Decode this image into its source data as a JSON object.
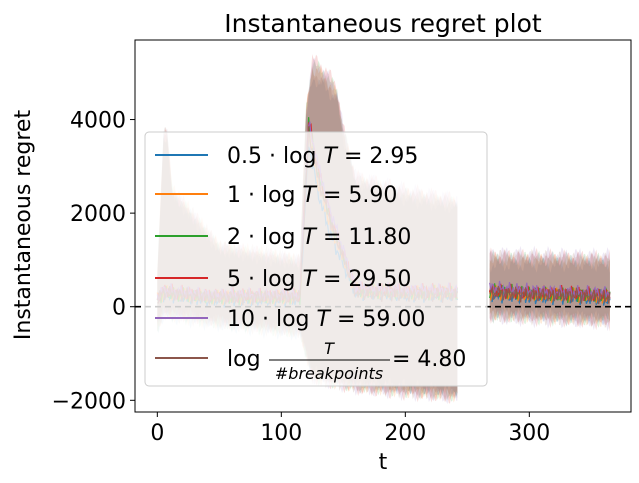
{
  "chart_data": {
    "type": "line",
    "title": "Instantaneous regret plot",
    "xlabel": "t",
    "ylabel": "Instantaneous regret",
    "xlim": [
      -18,
      382
    ],
    "ylim": [
      -2250,
      5700
    ],
    "xticks": [
      0,
      100,
      200,
      300
    ],
    "xtick_labels": [
      "0",
      "100",
      "200",
      "300"
    ],
    "yticks": [
      -2000,
      0,
      2000,
      4000
    ],
    "ytick_labels": [
      "−2000",
      "0",
      "2000",
      "4000"
    ],
    "grid": false,
    "legend_position": "center-left",
    "reference_line": {
      "y": 0,
      "style": "dashed",
      "color": "#000000"
    },
    "series": [
      {
        "name_parts": [
          "0.5 · log ",
          "T",
          " = 2.95"
        ],
        "color": "#1f77b4",
        "mean": [
          [
            0,
            150
          ],
          [
            5,
            250
          ],
          [
            40,
            150
          ],
          [
            80,
            150
          ],
          [
            115,
            150
          ],
          [
            122,
            3500
          ],
          [
            130,
            2400
          ],
          [
            140,
            1500
          ],
          [
            160,
            300
          ],
          [
            200,
            250
          ],
          [
            242,
            250
          ],
          [
            268,
            250
          ],
          [
            300,
            200
          ],
          [
            330,
            200
          ],
          [
            365,
            150
          ]
        ],
        "band": [
          [
            0,
            600
          ],
          [
            5,
            3600
          ],
          [
            8,
            3600
          ],
          [
            12,
            2400
          ],
          [
            50,
            1200
          ],
          [
            115,
            900
          ],
          [
            120,
            4000
          ],
          [
            125,
            4900
          ],
          [
            135,
            4700
          ],
          [
            145,
            4400
          ],
          [
            150,
            3600
          ],
          [
            160,
            2600
          ],
          [
            200,
            2300
          ],
          [
            242,
            2100
          ],
          [
            268,
            900
          ],
          [
            365,
            900
          ]
        ],
        "band_low": [
          [
            0,
            -500
          ],
          [
            5,
            -200
          ],
          [
            50,
            -400
          ],
          [
            115,
            -600
          ],
          [
            125,
            -1400
          ],
          [
            160,
            -1600
          ],
          [
            242,
            -1800
          ],
          [
            268,
            -100
          ],
          [
            365,
            -250
          ]
        ]
      },
      {
        "name_parts": [
          "1 · log ",
          "T",
          " = 5.90"
        ],
        "color": "#ff7f0e",
        "mean": [
          [
            0,
            150
          ],
          [
            5,
            300
          ],
          [
            40,
            200
          ],
          [
            80,
            200
          ],
          [
            115,
            200
          ],
          [
            122,
            3800
          ],
          [
            130,
            2600
          ],
          [
            140,
            1700
          ],
          [
            160,
            350
          ],
          [
            200,
            300
          ],
          [
            242,
            300
          ],
          [
            268,
            300
          ],
          [
            300,
            250
          ],
          [
            330,
            250
          ],
          [
            365,
            200
          ]
        ],
        "band": [
          [
            0,
            700
          ],
          [
            5,
            3700
          ],
          [
            8,
            3700
          ],
          [
            12,
            2500
          ],
          [
            50,
            1300
          ],
          [
            115,
            1000
          ],
          [
            120,
            4200
          ],
          [
            125,
            5100
          ],
          [
            135,
            4900
          ],
          [
            145,
            4500
          ],
          [
            150,
            3700
          ],
          [
            160,
            2700
          ],
          [
            200,
            2400
          ],
          [
            242,
            2200
          ],
          [
            268,
            1000
          ],
          [
            365,
            950
          ]
        ],
        "band_low": [
          [
            0,
            -450
          ],
          [
            5,
            -150
          ],
          [
            50,
            -350
          ],
          [
            115,
            -550
          ],
          [
            125,
            -1500
          ],
          [
            160,
            -1700
          ],
          [
            242,
            -1900
          ],
          [
            268,
            -150
          ],
          [
            365,
            -300
          ]
        ]
      },
      {
        "name_parts": [
          "2 · log ",
          "T",
          " = 11.80"
        ],
        "color": "#2ca02c",
        "mean": [
          [
            0,
            150
          ],
          [
            5,
            300
          ],
          [
            40,
            200
          ],
          [
            80,
            200
          ],
          [
            115,
            200
          ],
          [
            122,
            4000
          ],
          [
            130,
            2800
          ],
          [
            140,
            1800
          ],
          [
            160,
            350
          ],
          [
            200,
            300
          ],
          [
            242,
            300
          ],
          [
            268,
            350
          ],
          [
            300,
            300
          ],
          [
            330,
            250
          ],
          [
            365,
            250
          ]
        ],
        "band": [
          [
            0,
            700
          ],
          [
            5,
            3650
          ],
          [
            8,
            3650
          ],
          [
            12,
            2450
          ],
          [
            50,
            1250
          ],
          [
            115,
            950
          ],
          [
            120,
            4300
          ],
          [
            125,
            5200
          ],
          [
            135,
            5000
          ],
          [
            145,
            4600
          ],
          [
            150,
            3800
          ],
          [
            160,
            2700
          ],
          [
            200,
            2400
          ],
          [
            242,
            2200
          ],
          [
            268,
            1050
          ],
          [
            365,
            1000
          ]
        ],
        "band_low": [
          [
            0,
            -450
          ],
          [
            5,
            -150
          ],
          [
            50,
            -350
          ],
          [
            115,
            -550
          ],
          [
            125,
            -1500
          ],
          [
            160,
            -1700
          ],
          [
            242,
            -1900
          ],
          [
            268,
            -200
          ],
          [
            365,
            -300
          ]
        ]
      },
      {
        "name_parts": [
          "5 · log ",
          "T",
          " = 29.50"
        ],
        "color": "#d62728",
        "mean": [
          [
            0,
            200
          ],
          [
            5,
            350
          ],
          [
            40,
            250
          ],
          [
            80,
            250
          ],
          [
            115,
            250
          ],
          [
            122,
            4000
          ],
          [
            130,
            2900
          ],
          [
            140,
            1900
          ],
          [
            160,
            400
          ],
          [
            200,
            350
          ],
          [
            242,
            350
          ],
          [
            268,
            350
          ],
          [
            300,
            300
          ],
          [
            330,
            300
          ],
          [
            365,
            250
          ]
        ],
        "band": [
          [
            0,
            750
          ],
          [
            5,
            3700
          ],
          [
            8,
            3700
          ],
          [
            12,
            2500
          ],
          [
            50,
            1300
          ],
          [
            115,
            1000
          ],
          [
            120,
            4300
          ],
          [
            125,
            5300
          ],
          [
            135,
            5100
          ],
          [
            145,
            4700
          ],
          [
            150,
            3800
          ],
          [
            160,
            2800
          ],
          [
            200,
            2500
          ],
          [
            242,
            2300
          ],
          [
            268,
            1100
          ],
          [
            365,
            1050
          ]
        ],
        "band_low": [
          [
            0,
            -400
          ],
          [
            5,
            -100
          ],
          [
            50,
            -300
          ],
          [
            115,
            -500
          ],
          [
            125,
            -1500
          ],
          [
            160,
            -1750
          ],
          [
            242,
            -1950
          ],
          [
            268,
            -200
          ],
          [
            365,
            -350
          ]
        ]
      },
      {
        "name_parts": [
          "10 · log ",
          "T",
          " = 59.00"
        ],
        "color": "#9467bd",
        "mean": [
          [
            0,
            200
          ],
          [
            5,
            350
          ],
          [
            40,
            250
          ],
          [
            80,
            250
          ],
          [
            115,
            250
          ],
          [
            122,
            3900
          ],
          [
            130,
            3000
          ],
          [
            140,
            2000
          ],
          [
            160,
            400
          ],
          [
            200,
            350
          ],
          [
            242,
            350
          ],
          [
            268,
            400
          ],
          [
            300,
            350
          ],
          [
            330,
            300
          ],
          [
            365,
            300
          ]
        ],
        "band": [
          [
            0,
            750
          ],
          [
            5,
            3650
          ],
          [
            8,
            3650
          ],
          [
            12,
            2450
          ],
          [
            50,
            1250
          ],
          [
            115,
            1000
          ],
          [
            120,
            4250
          ],
          [
            125,
            5200
          ],
          [
            135,
            5000
          ],
          [
            145,
            4600
          ],
          [
            150,
            3800
          ],
          [
            160,
            2800
          ],
          [
            200,
            2500
          ],
          [
            242,
            2300
          ],
          [
            268,
            1150
          ],
          [
            365,
            1100
          ]
        ],
        "band_low": [
          [
            0,
            -400
          ],
          [
            5,
            -100
          ],
          [
            50,
            -300
          ],
          [
            115,
            -500
          ],
          [
            125,
            -1500
          ],
          [
            160,
            -1750
          ],
          [
            242,
            -1950
          ],
          [
            268,
            -250
          ],
          [
            365,
            -350
          ]
        ]
      },
      {
        "name_parts": [
          "log ",
          "T",
          "#breakpoints",
          " = 4.80"
        ],
        "color": "#8c564b",
        "mean": [
          [
            0,
            150
          ],
          [
            5,
            300
          ],
          [
            40,
            200
          ],
          [
            80,
            200
          ],
          [
            115,
            200
          ],
          [
            122,
            3700
          ],
          [
            130,
            2700
          ],
          [
            140,
            1800
          ],
          [
            160,
            300
          ],
          [
            200,
            250
          ],
          [
            242,
            250
          ],
          [
            268,
            300
          ],
          [
            300,
            250
          ],
          [
            330,
            250
          ],
          [
            365,
            200
          ]
        ],
        "band": [
          [
            0,
            700
          ],
          [
            5,
            3700
          ],
          [
            8,
            3700
          ],
          [
            12,
            2500
          ],
          [
            50,
            1300
          ],
          [
            115,
            1000
          ],
          [
            120,
            4200
          ],
          [
            125,
            5000
          ],
          [
            135,
            4800
          ],
          [
            145,
            4500
          ],
          [
            150,
            3700
          ],
          [
            160,
            2700
          ],
          [
            200,
            2400
          ],
          [
            242,
            2200
          ],
          [
            268,
            1100
          ],
          [
            365,
            1000
          ]
        ],
        "band_low": [
          [
            0,
            -450
          ],
          [
            5,
            -150
          ],
          [
            50,
            -350
          ],
          [
            115,
            -550
          ],
          [
            125,
            -1500
          ],
          [
            160,
            -1700
          ],
          [
            242,
            -1900
          ],
          [
            268,
            -200
          ],
          [
            365,
            -300
          ]
        ]
      }
    ]
  }
}
